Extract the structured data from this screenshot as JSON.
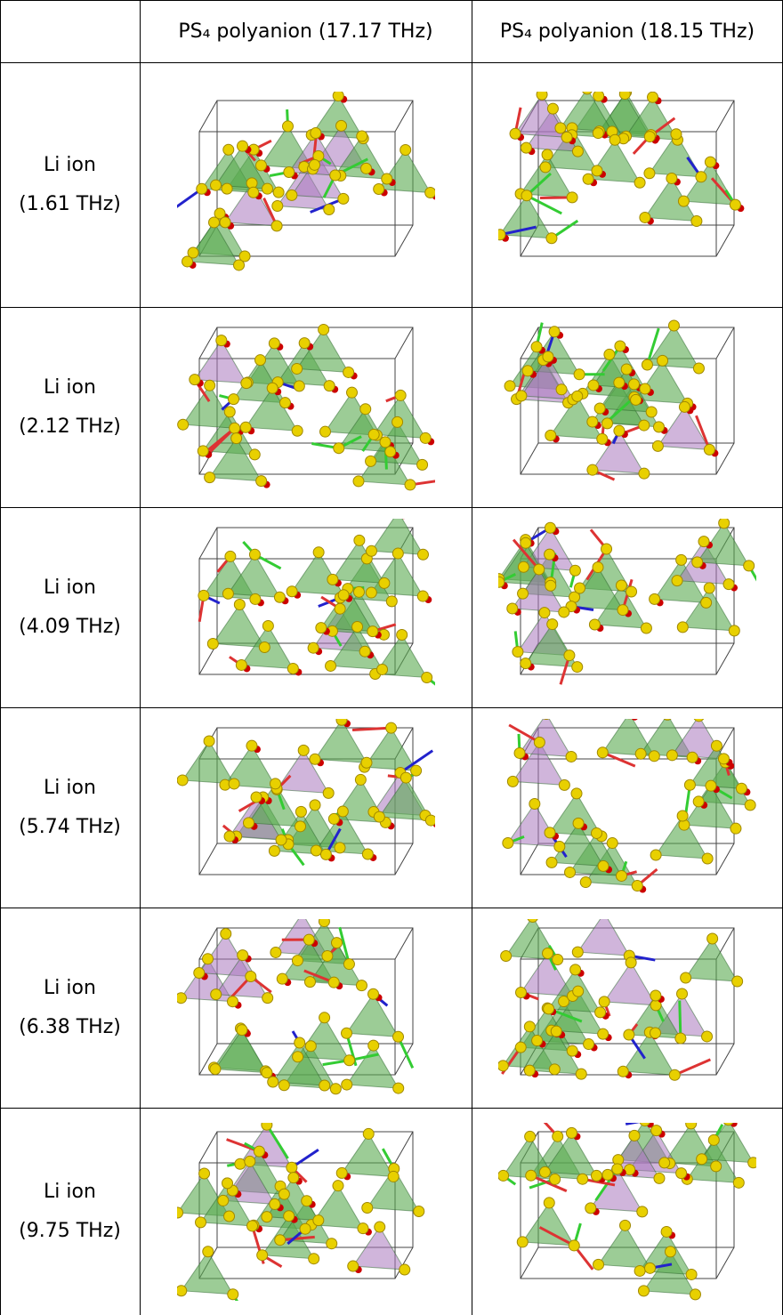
{
  "table": {
    "header": [
      "",
      "PS₄ polyanion (17.17 THz)",
      "PS₄ polyanion (18.15 THz)"
    ],
    "rows": [
      {
        "label": "Li ion",
        "freq": "(1.61 THz)"
      },
      {
        "label": "Li ion",
        "freq": "(2.12 THz)"
      },
      {
        "label": "Li ion",
        "freq": "(4.09 THz)"
      },
      {
        "label": "Li ion",
        "freq": "(5.74 THz)"
      },
      {
        "label": "Li ion",
        "freq": "(6.38 THz)"
      },
      {
        "label": "Li ion",
        "freq": "(9.75 THz)"
      }
    ]
  }
}
